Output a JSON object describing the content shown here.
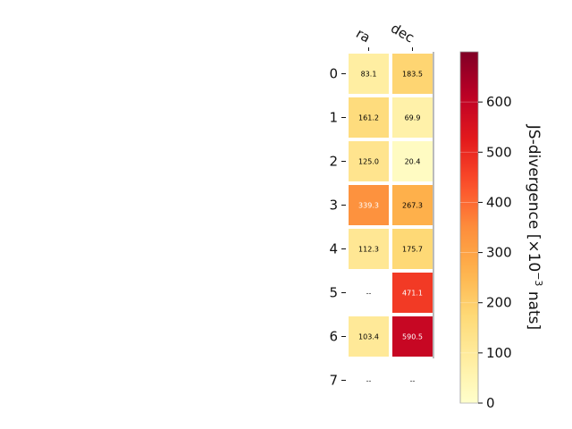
{
  "chart_data": {
    "type": "heatmap",
    "columns": [
      "ra",
      "dec"
    ],
    "rows": [
      "0",
      "1",
      "2",
      "3",
      "4",
      "5",
      "6",
      "7"
    ],
    "values": [
      [
        83.1,
        183.5
      ],
      [
        161.2,
        69.9
      ],
      [
        125.0,
        20.4
      ],
      [
        339.3,
        267.3
      ],
      [
        112.3,
        175.7
      ],
      [
        null,
        471.1
      ],
      [
        103.4,
        590.5
      ],
      [
        null,
        null
      ]
    ],
    "missing_label": "--",
    "colorbar": {
      "label_prefix": "JS-divergence [×10",
      "label_exponent": "−3",
      "label_suffix": " nats]",
      "range": [
        0,
        700
      ],
      "ticks": [
        "0",
        "100",
        "200",
        "300",
        "400",
        "500",
        "600"
      ],
      "colormap": "YlOrRd"
    }
  }
}
